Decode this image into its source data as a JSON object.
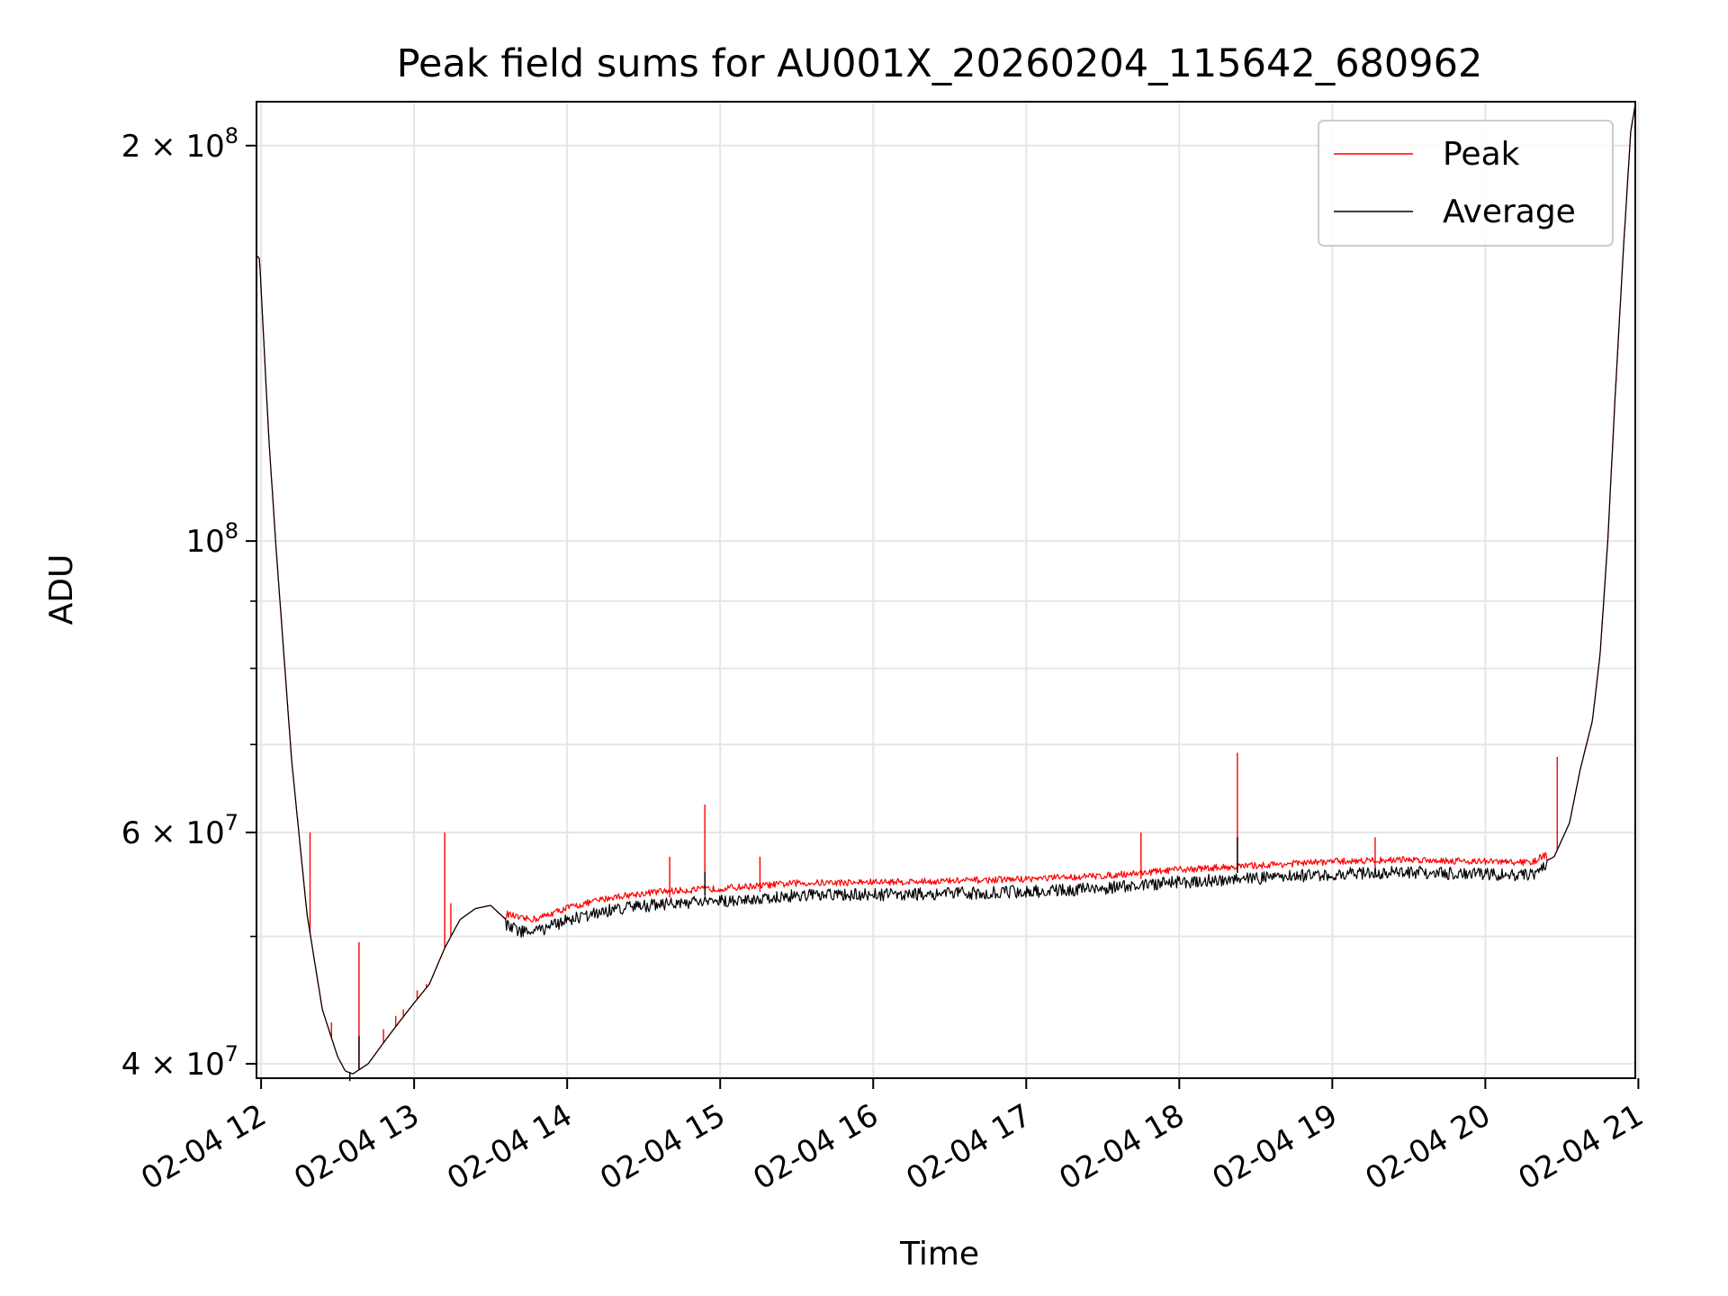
{
  "chart_data": {
    "type": "line",
    "title": "Peak field sums for AU001X_20260204_115642_680962",
    "xlabel": "Time",
    "ylabel": "ADU",
    "yscale": "log",
    "ylim": [
      39000000,
      216000000
    ],
    "xlim_hours": [
      11.97,
      20.98
    ],
    "grid": true,
    "legend_position": "upper-right",
    "xticks": [
      {
        "hour": 12,
        "label": "02-04 12"
      },
      {
        "hour": 13,
        "label": "02-04 13"
      },
      {
        "hour": 14,
        "label": "02-04 14"
      },
      {
        "hour": 15,
        "label": "02-04 15"
      },
      {
        "hour": 16,
        "label": "02-04 16"
      },
      {
        "hour": 17,
        "label": "02-04 17"
      },
      {
        "hour": 18,
        "label": "02-04 18"
      },
      {
        "hour": 19,
        "label": "02-04 19"
      },
      {
        "hour": 20,
        "label": "02-04 20"
      },
      {
        "hour": 21,
        "label": "02-04 21"
      }
    ],
    "yticks_major": [
      {
        "value": 40000000,
        "mant": "4",
        "times": "×",
        "base": "10",
        "exp": "7"
      },
      {
        "value": 60000000,
        "mant": "6",
        "times": "×",
        "base": "10",
        "exp": "7"
      },
      {
        "value": 100000000,
        "mant": "",
        "times": "",
        "base": "10",
        "exp": "8"
      },
      {
        "value": 200000000,
        "mant": "2",
        "times": "×",
        "base": "10",
        "exp": "8"
      }
    ],
    "yticks_minor": [
      50000000,
      70000000,
      80000000,
      90000000
    ],
    "series": [
      {
        "name": "Peak",
        "color": "#ff0000"
      },
      {
        "name": "Average",
        "color": "#000000"
      }
    ],
    "baseline_curve": {
      "hours": [
        11.97,
        11.99,
        12.05,
        12.1,
        12.2,
        12.3,
        12.4,
        12.5,
        12.55,
        12.6,
        12.7,
        12.8,
        12.9,
        13.0,
        13.1,
        13.2,
        13.3,
        13.4,
        13.5,
        13.6,
        13.7,
        13.8,
        13.9,
        14.0,
        14.3,
        14.6,
        15.0,
        15.5,
        16.0,
        16.5,
        17.0,
        17.5,
        18.0,
        18.5,
        19.0,
        19.5,
        20.0,
        20.3,
        20.45,
        20.55,
        20.62,
        20.7,
        20.75,
        20.8,
        20.85,
        20.9,
        20.95,
        20.98
      ],
      "values": [
        165000000,
        164000000,
        120000000,
        98000000,
        68000000,
        52000000,
        44000000,
        40500000,
        39500000,
        39300000,
        40000000,
        41500000,
        43000000,
        44500000,
        46000000,
        49000000,
        51500000,
        52500000,
        52800000,
        51500000,
        51000000,
        51000000,
        51500000,
        52000000,
        53000000,
        53500000,
        53800000,
        54300000,
        54400000,
        54500000,
        54700000,
        55000000,
        55600000,
        56000000,
        56400000,
        56600000,
        56400000,
        56300000,
        57500000,
        61000000,
        67000000,
        73000000,
        82000000,
        100000000,
        130000000,
        165000000,
        205000000,
        215000000
      ]
    },
    "noise_start_hour": 13.6,
    "noise_end_hour": 20.4,
    "peak_spikes": [
      {
        "hour": 12.32,
        "value": 60000000
      },
      {
        "hour": 12.46,
        "value": 43000000
      },
      {
        "hour": 12.64,
        "value": 49500000
      },
      {
        "hour": 12.8,
        "value": 42500000
      },
      {
        "hour": 12.88,
        "value": 43500000
      },
      {
        "hour": 12.93,
        "value": 44000000
      },
      {
        "hour": 13.02,
        "value": 45500000
      },
      {
        "hour": 13.08,
        "value": 46000000
      },
      {
        "hour": 13.2,
        "value": 60000000
      },
      {
        "hour": 13.24,
        "value": 53000000
      },
      {
        "hour": 14.67,
        "value": 57500000
      },
      {
        "hour": 14.9,
        "value": 63000000
      },
      {
        "hour": 15.26,
        "value": 57500000
      },
      {
        "hour": 17.75,
        "value": 60000000
      },
      {
        "hour": 18.38,
        "value": 69000000
      },
      {
        "hour": 19.28,
        "value": 59500000
      },
      {
        "hour": 20.47,
        "value": 68500000
      }
    ],
    "average_spikes": [
      {
        "hour": 12.58,
        "value": 38800000
      },
      {
        "hour": 12.64,
        "value": 42000000
      },
      {
        "hour": 14.9,
        "value": 56000000
      },
      {
        "hour": 18.38,
        "value": 59500000
      }
    ]
  }
}
